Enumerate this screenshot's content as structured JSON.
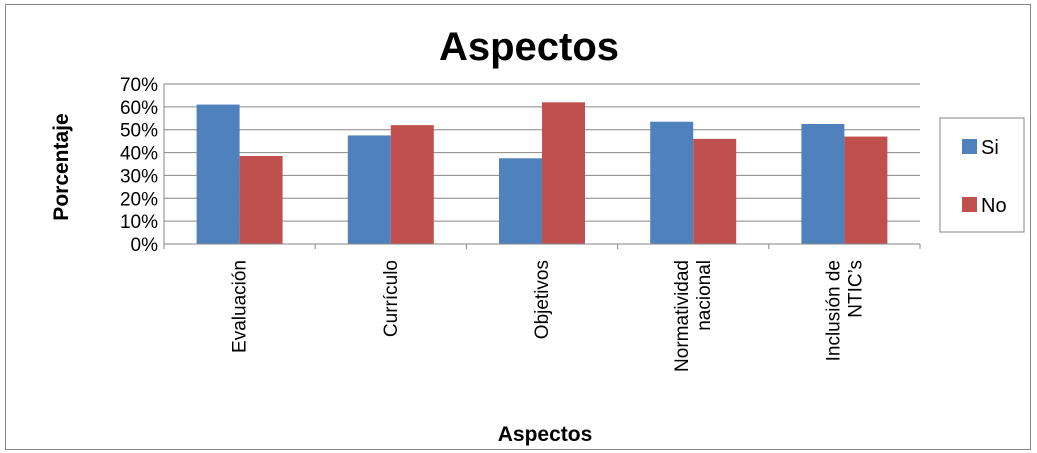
{
  "chart_data": {
    "type": "bar",
    "title": "Aspectos",
    "xlabel": "Aspectos",
    "ylabel": "Porcentaje",
    "categories": [
      [
        "Evaluación"
      ],
      [
        "Currículo"
      ],
      [
        "Objetivos"
      ],
      [
        "Normatividad",
        "nacional"
      ],
      [
        "Inclusión de",
        "NTIC’s"
      ]
    ],
    "series": [
      {
        "name": "Si",
        "color": "#4F81BD",
        "values": [
          61,
          47.5,
          37.5,
          53.5,
          52.5
        ]
      },
      {
        "name": "No",
        "color": "#C0504D",
        "values": [
          38.5,
          52,
          62,
          46,
          47
        ]
      }
    ],
    "ylim": [
      0,
      70
    ],
    "yticks": [
      "0%",
      "10%",
      "20%",
      "30%",
      "40%",
      "50%",
      "60%",
      "70%"
    ],
    "grid": true,
    "legend": "right"
  }
}
